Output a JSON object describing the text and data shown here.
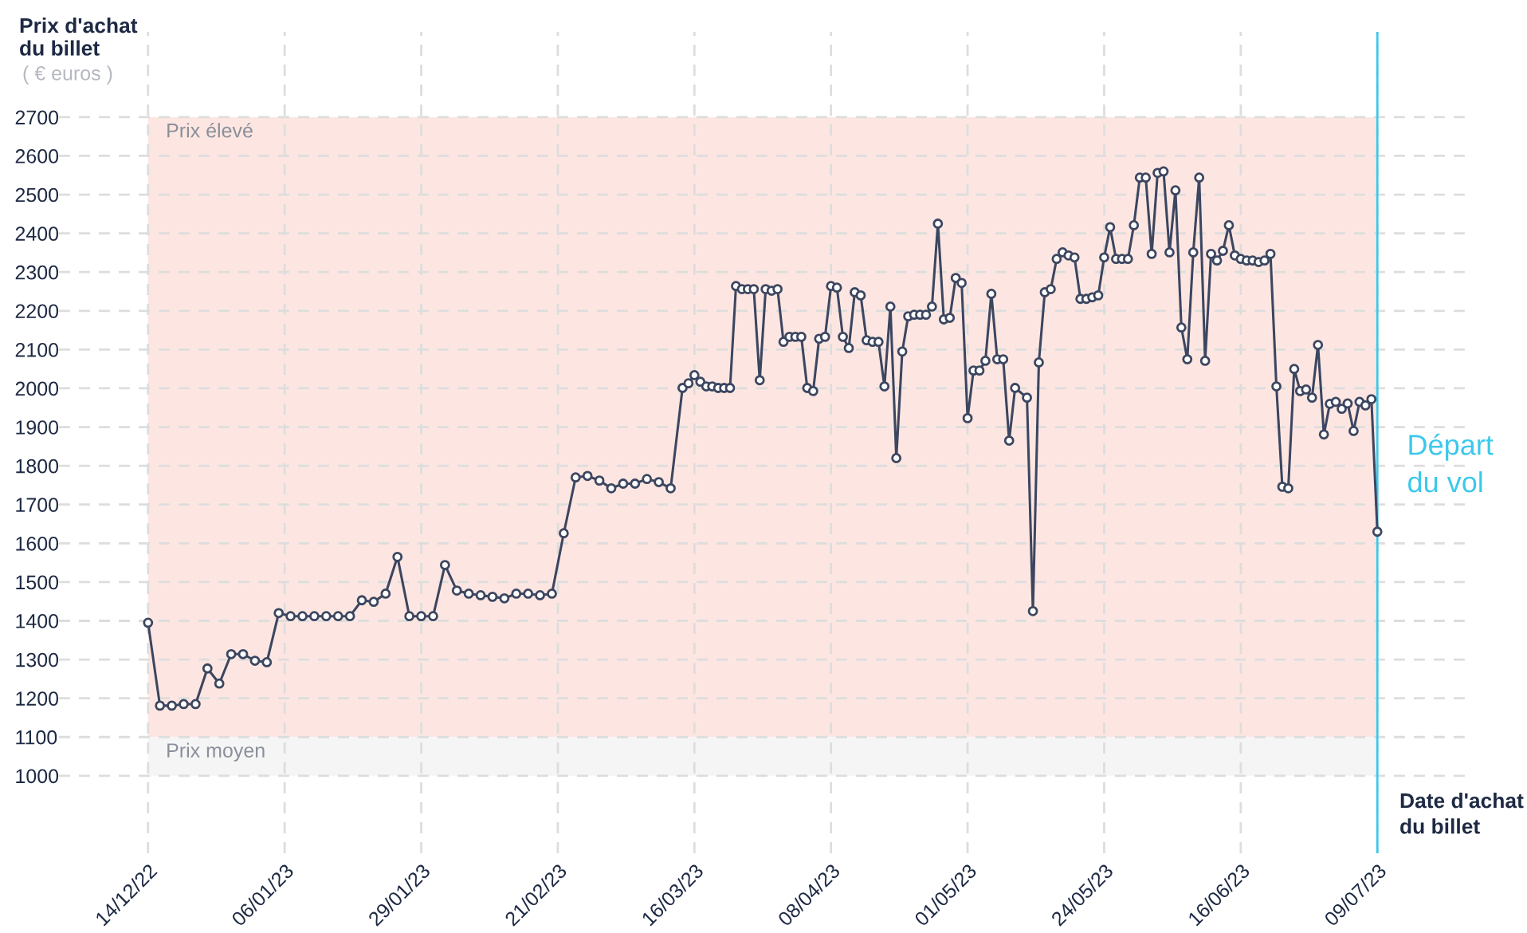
{
  "chart_data": {
    "type": "line",
    "ylabel": "Prix d'achat\ndu billet",
    "xlabel": "Date d'achat\ndu billet",
    "annotations": [
      "( € euros )"
    ],
    "series": [
      {
        "color": "#3c4660",
        "marker": "circle",
        "line_style": "solid",
        "x": [
          "2022-12-14",
          "2022-12-16",
          "2022-12-18",
          "2022-12-20",
          "2022-12-22",
          "2022-12-24",
          "2022-12-26",
          "2022-12-28",
          "2022-12-30",
          "2023-01-01",
          "2023-01-03",
          "2023-01-05",
          "2023-01-07",
          "2023-01-09",
          "2023-01-11",
          "2023-01-13",
          "2023-01-15",
          "2023-01-17",
          "2023-01-19",
          "2023-01-21",
          "2023-01-23",
          "2023-01-25",
          "2023-01-27",
          "2023-01-29",
          "2023-01-31",
          "2023-02-02",
          "2023-02-04",
          "2023-02-06",
          "2023-02-08",
          "2023-02-10",
          "2023-02-12",
          "2023-02-14",
          "2023-02-16",
          "2023-02-18",
          "2023-02-20",
          "2023-02-22",
          "2023-02-24",
          "2023-02-26",
          "2023-02-28",
          "2023-03-02",
          "2023-03-04",
          "2023-03-06",
          "2023-03-08",
          "2023-03-10",
          "2023-03-12",
          "2023-03-14",
          "2023-03-15",
          "2023-03-16",
          "2023-03-17",
          "2023-03-18",
          "2023-03-19",
          "2023-03-20",
          "2023-03-21",
          "2023-03-22",
          "2023-03-23",
          "2023-03-24",
          "2023-03-25",
          "2023-03-26",
          "2023-03-27",
          "2023-03-28",
          "2023-03-29",
          "2023-03-30",
          "2023-03-31",
          "2023-04-01",
          "2023-04-02",
          "2023-04-03",
          "2023-04-04",
          "2023-04-05",
          "2023-04-06",
          "2023-04-07",
          "2023-04-08",
          "2023-04-09",
          "2023-04-10",
          "2023-04-11",
          "2023-04-12",
          "2023-04-13",
          "2023-04-14",
          "2023-04-15",
          "2023-04-16",
          "2023-04-17",
          "2023-04-18",
          "2023-04-19",
          "2023-04-20",
          "2023-04-21",
          "2023-04-22",
          "2023-04-23",
          "2023-04-24",
          "2023-04-25",
          "2023-04-26",
          "2023-04-27",
          "2023-04-28",
          "2023-04-29",
          "2023-04-30",
          "2023-05-01",
          "2023-05-02",
          "2023-05-03",
          "2023-05-04",
          "2023-05-05",
          "2023-05-06",
          "2023-05-07",
          "2023-05-08",
          "2023-05-09",
          "2023-05-11",
          "2023-05-12",
          "2023-05-13",
          "2023-05-14",
          "2023-05-15",
          "2023-05-16",
          "2023-05-17",
          "2023-05-18",
          "2023-05-19",
          "2023-05-20",
          "2023-05-21",
          "2023-05-22",
          "2023-05-23",
          "2023-05-24",
          "2023-05-25",
          "2023-05-26",
          "2023-05-27",
          "2023-05-28",
          "2023-05-29",
          "2023-05-30",
          "2023-05-31",
          "2023-06-01",
          "2023-06-02",
          "2023-06-03",
          "2023-06-04",
          "2023-06-05",
          "2023-06-06",
          "2023-06-07",
          "2023-06-08",
          "2023-06-09",
          "2023-06-10",
          "2023-06-11",
          "2023-06-12",
          "2023-06-13",
          "2023-06-14",
          "2023-06-15",
          "2023-06-16",
          "2023-06-17",
          "2023-06-18",
          "2023-06-19",
          "2023-06-20",
          "2023-06-21",
          "2023-06-22",
          "2023-06-23",
          "2023-06-24",
          "2023-06-25",
          "2023-06-26",
          "2023-06-27",
          "2023-06-28",
          "2023-06-29",
          "2023-06-30",
          "2023-07-01",
          "2023-07-02",
          "2023-07-03",
          "2023-07-04",
          "2023-07-05",
          "2023-07-06",
          "2023-07-07",
          "2023-07-08",
          "2023-07-09"
        ],
        "values": [
          1395,
          1181,
          1181,
          1185,
          1185,
          1277,
          1238,
          1314,
          1314,
          1297,
          1293,
          1420,
          1412,
          1412,
          1412,
          1412,
          1412,
          1412,
          1453,
          1449,
          1470,
          1565,
          1412,
          1412,
          1412,
          1544,
          1478,
          1470,
          1466,
          1462,
          1458,
          1470,
          1470,
          1466,
          1470,
          1626,
          1770,
          1774,
          1762,
          1742,
          1754,
          1754,
          1766,
          1758,
          1742,
          2001,
          2013,
          2034,
          2017,
          2005,
          2005,
          2001,
          2001,
          2001,
          2264,
          2256,
          2256,
          2256,
          2021,
          2256,
          2252,
          2256,
          2120,
          2133,
          2133,
          2133,
          2001,
          1993,
          2128,
          2133,
          2264,
          2260,
          2133,
          2104,
          2248,
          2240,
          2124,
          2120,
          2120,
          2005,
          2211,
          1820,
          2095,
          2186,
          2190,
          2190,
          2190,
          2211,
          2425,
          2178,
          2182,
          2285,
          2272,
          1923,
          2046,
          2046,
          2071,
          2244,
          2075,
          2075,
          1865,
          2001,
          1976,
          1425,
          2067,
          2248,
          2256,
          2334,
          2351,
          2343,
          2338,
          2231,
          2231,
          2235,
          2240,
          2338,
          2416,
          2334,
          2334,
          2334,
          2421,
          2544,
          2544,
          2347,
          2556,
          2560,
          2351,
          2511,
          2157,
          2075,
          2351,
          2544,
          2071,
          2347,
          2330,
          2355,
          2421,
          2343,
          2334,
          2330,
          2330,
          2326,
          2330,
          2347,
          2005,
          1746,
          1742,
          2050,
          1993,
          1997,
          1976,
          2112,
          1881,
          1960,
          1965,
          1947,
          1961,
          1890,
          1965,
          1956,
          1972,
          1630
        ]
      }
    ],
    "xlim": [
      "2022-11-29",
      "2023-07-24"
    ],
    "xticks": [
      {
        "value": "2022-12-14",
        "label": "14/12/22"
      },
      {
        "value": "2023-01-06",
        "label": "06/01/23"
      },
      {
        "value": "2023-01-29",
        "label": "29/01/23"
      },
      {
        "value": "2023-02-21",
        "label": "21/02/23"
      },
      {
        "value": "2023-03-16",
        "label": "16/03/23"
      },
      {
        "value": "2023-04-08",
        "label": "08/04/23"
      },
      {
        "value": "2023-05-01",
        "label": "01/05/23"
      },
      {
        "value": "2023-05-24",
        "label": "24/05/23"
      },
      {
        "value": "2023-06-16",
        "label": "16/06/23"
      },
      {
        "value": "2023-07-09",
        "label": "09/07/23"
      }
    ],
    "ylim": [
      800,
      2920
    ],
    "yticks": [
      1000,
      1100,
      1200,
      1300,
      1400,
      1500,
      1600,
      1700,
      1800,
      1900,
      2000,
      2100,
      2200,
      2300,
      2400,
      2500,
      2600,
      2700
    ],
    "grid": true,
    "bands": [
      {
        "axis": "y",
        "from": 1100,
        "to": 2700,
        "label": "Prix élevé",
        "color": "#fde6e1"
      },
      {
        "axis": "y",
        "from": 1000,
        "to": 1100,
        "label": "Prix moyen",
        "color": "#f5f5f5"
      }
    ],
    "ref_lines": [
      {
        "axis": "x",
        "value": "2023-07-09",
        "label": "Départ\ndu vol",
        "color": "#3cc8ec",
        "line_style": "solid"
      }
    ]
  }
}
